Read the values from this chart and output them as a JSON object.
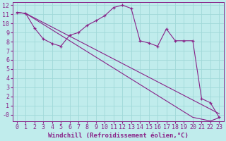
{
  "background_color": "#c0ecec",
  "grid_color": "#a0d8d8",
  "line_color": "#882288",
  "xlim": [
    -0.5,
    23.5
  ],
  "ylim": [
    -0.7,
    12.3
  ],
  "xlabel": "Windchill (Refroidissement éolien,°C)",
  "xlabel_fontsize": 6.5,
  "xtick_labels": [
    "0",
    "1",
    "2",
    "3",
    "4",
    "5",
    "6",
    "7",
    "8",
    "9",
    "10",
    "11",
    "12",
    "13",
    "14",
    "15",
    "16",
    "17",
    "18",
    "19",
    "20",
    "21",
    "22",
    "23"
  ],
  "xtick_pos": [
    0,
    1,
    2,
    3,
    4,
    5,
    6,
    7,
    8,
    9,
    10,
    11,
    12,
    13,
    14,
    15,
    16,
    17,
    18,
    19,
    20,
    21,
    22,
    23
  ],
  "ytick_labels": [
    "12",
    "11",
    "10",
    "9",
    "8",
    "7",
    "6",
    "5",
    "4",
    "3",
    "2",
    "1",
    "-0"
  ],
  "ytick_pos": [
    12,
    11,
    10,
    9,
    8,
    7,
    6,
    5,
    4,
    3,
    2,
    1,
    0
  ],
  "tick_fontsize": 6,
  "series1_x": [
    0,
    1,
    2,
    3,
    4,
    5,
    6,
    7,
    8,
    9,
    10,
    11,
    12,
    13,
    14,
    15,
    16,
    17,
    18,
    19,
    20,
    21,
    22,
    23
  ],
  "series1_y": [
    11.2,
    11.1,
    9.5,
    8.3,
    7.8,
    7.5,
    8.7,
    9.0,
    9.8,
    10.3,
    10.85,
    11.75,
    12.0,
    11.65,
    8.1,
    7.85,
    7.5,
    9.4,
    8.1,
    8.1,
    8.1,
    1.75,
    1.3,
    -0.3
  ],
  "series2_x": [
    0,
    1,
    2,
    3,
    4,
    5,
    6,
    7,
    8,
    9,
    10,
    11,
    12,
    13,
    14,
    15,
    16,
    17,
    18,
    19,
    20,
    21,
    22,
    23
  ],
  "series2_y": [
    11.2,
    11.1,
    10.6,
    10.1,
    9.6,
    9.1,
    8.6,
    8.1,
    7.6,
    7.1,
    6.6,
    6.1,
    5.6,
    5.1,
    4.6,
    4.1,
    3.6,
    3.1,
    2.6,
    2.1,
    1.6,
    1.1,
    0.6,
    0.1
  ],
  "series3_x": [
    0,
    1,
    2,
    3,
    4,
    5,
    6,
    7,
    8,
    9,
    10,
    11,
    12,
    13,
    14,
    15,
    16,
    17,
    18,
    19,
    20,
    21,
    22,
    23
  ],
  "series3_y": [
    11.2,
    11.1,
    10.5,
    9.9,
    9.3,
    8.7,
    8.1,
    7.5,
    6.9,
    6.3,
    5.7,
    5.1,
    4.5,
    3.9,
    3.3,
    2.7,
    2.1,
    1.5,
    0.9,
    0.3,
    -0.3,
    -0.5,
    -0.7,
    -0.35
  ]
}
